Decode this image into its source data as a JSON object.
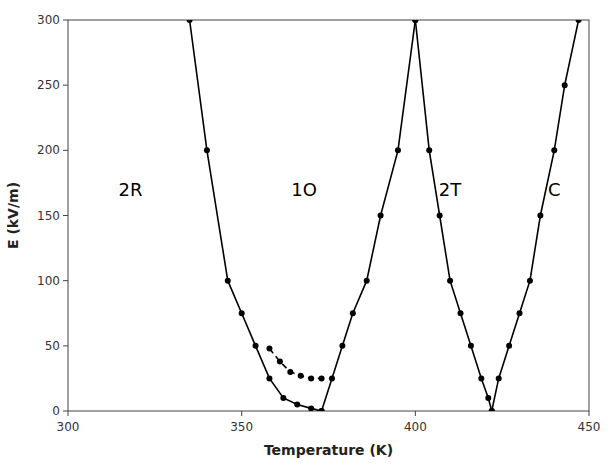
{
  "chart_data": {
    "type": "line",
    "title": "",
    "xlabel": "Temperature (K)",
    "ylabel": "E (kV/m)",
    "xlim": [
      300,
      450
    ],
    "ylim": [
      0,
      300
    ],
    "xticks": [
      300,
      350,
      400,
      450
    ],
    "yticks": [
      0,
      50,
      100,
      150,
      200,
      250,
      300
    ],
    "grid": false,
    "color": "#000000",
    "series": [
      {
        "x": [
          335,
          340,
          346,
          350,
          354,
          358,
          362,
          366,
          370,
          373
        ],
        "values": [
          300,
          200,
          100,
          75,
          50,
          25,
          10,
          5,
          2,
          0
        ],
        "line_style": "solid",
        "marker": "circle"
      },
      {
        "x": [
          373,
          376,
          379,
          382,
          386,
          390,
          395,
          400
        ],
        "values": [
          0,
          25,
          50,
          75,
          100,
          150,
          200,
          300
        ],
        "line_style": "solid",
        "marker": "circle"
      },
      {
        "x": [
          358,
          361,
          364,
          367,
          370,
          373
        ],
        "values": [
          48,
          38,
          30,
          27,
          25,
          25
        ],
        "line_style": "dashed",
        "marker": "circle"
      },
      {
        "x": [
          400,
          404,
          407,
          410,
          413,
          416,
          419,
          421,
          422
        ],
        "values": [
          300,
          200,
          150,
          100,
          75,
          50,
          25,
          10,
          0
        ],
        "line_style": "solid",
        "marker": "circle"
      },
      {
        "x": [
          422,
          424,
          427,
          430,
          433,
          436,
          440,
          443,
          447
        ],
        "values": [
          0,
          25,
          50,
          75,
          100,
          150,
          200,
          250,
          300
        ],
        "line_style": "solid",
        "marker": "circle"
      }
    ],
    "annotations": [
      {
        "text": "2R",
        "x": 318,
        "y": 170
      },
      {
        "text": "1O",
        "x": 368,
        "y": 170
      },
      {
        "text": "2T",
        "x": 410,
        "y": 170
      },
      {
        "text": "C",
        "x": 440,
        "y": 170
      }
    ]
  }
}
